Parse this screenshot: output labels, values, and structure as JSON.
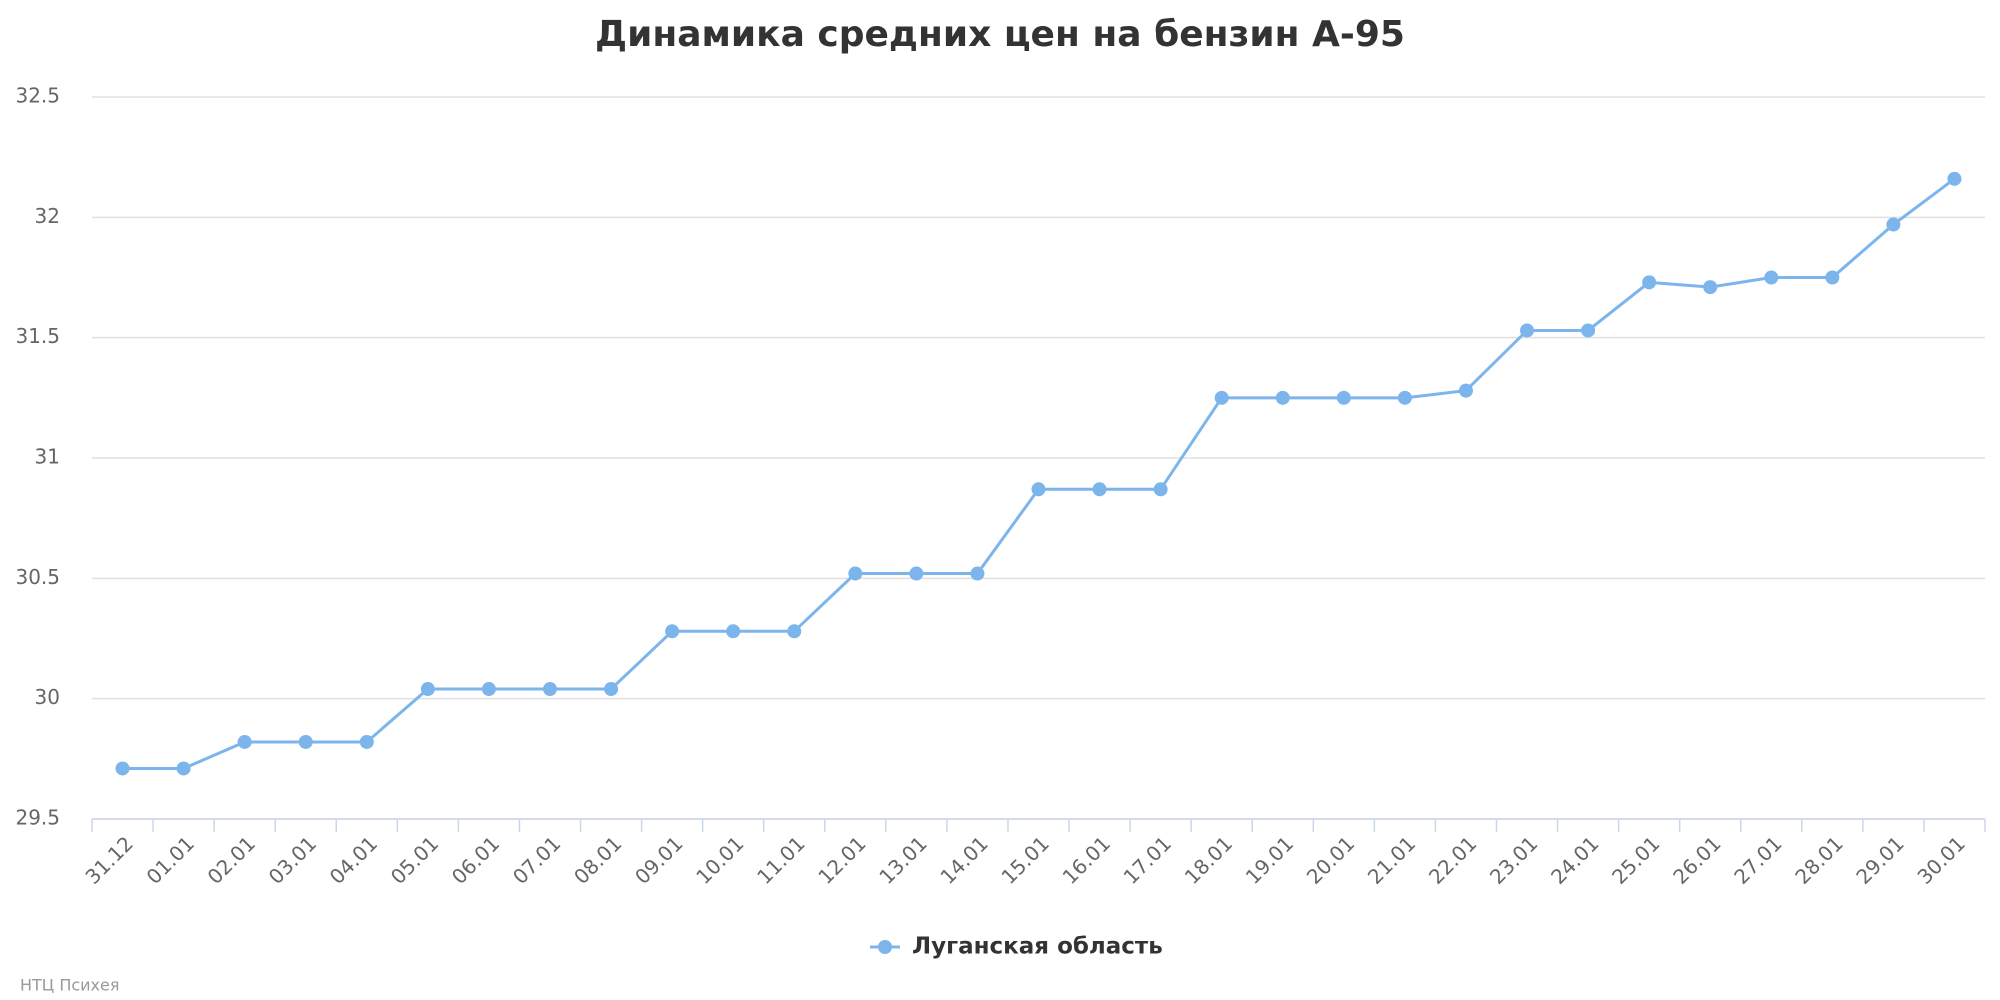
{
  "chart_data": {
    "type": "line",
    "title": "Динамика средних цен на бензин А-95",
    "categories": [
      "31.12",
      "01.01",
      "02.01",
      "03.01",
      "04.01",
      "05.01",
      "06.01",
      "07.01",
      "08.01",
      "09.01",
      "10.01",
      "11.01",
      "12.01",
      "13.01",
      "14.01",
      "15.01",
      "16.01",
      "17.01",
      "18.01",
      "19.01",
      "20.01",
      "21.01",
      "22.01",
      "23.01",
      "24.01",
      "25.01",
      "26.01",
      "27.01",
      "28.01",
      "29.01",
      "30.01"
    ],
    "series": [
      {
        "name": "Луганская область",
        "color": "#7cb5ec",
        "values": [
          29.71,
          29.71,
          29.82,
          29.82,
          29.82,
          30.04,
          30.04,
          30.04,
          30.04,
          30.28,
          30.28,
          30.28,
          30.52,
          30.52,
          30.52,
          30.87,
          30.87,
          30.87,
          31.25,
          31.25,
          31.25,
          31.25,
          31.28,
          31.53,
          31.53,
          31.73,
          31.71,
          31.75,
          31.75,
          31.97,
          32.16
        ]
      }
    ],
    "ylim": [
      29.5,
      32.5
    ],
    "yticks": [
      29.5,
      30,
      30.5,
      31,
      31.5,
      32,
      32.5
    ],
    "grid": true,
    "legend": "bottom",
    "credit": "НТЦ Психея"
  }
}
